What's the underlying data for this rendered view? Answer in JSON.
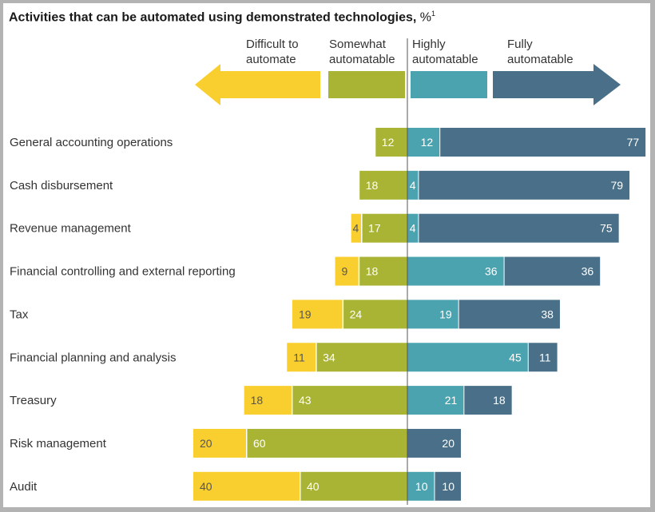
{
  "title": {
    "main": "Activities that can be automated using demonstrated technologies,",
    "unit": "%",
    "footnote_mark": "1"
  },
  "colors": {
    "difficult": "#f9cf2f",
    "somewhat": "#a9b434",
    "highly": "#4ba3b0",
    "fully": "#4a7089",
    "axis": "#555555"
  },
  "chart_data": {
    "type": "bar",
    "layout": "diverging-stacked-horizontal",
    "title": "Activities that can be automated using demonstrated technologies, %",
    "categories": [
      "General accounting operations",
      "Cash disbursement",
      "Revenue management",
      "Financial controlling and external reporting",
      "Tax",
      "Financial planning and analysis",
      "Treasury",
      "Risk management",
      "Audit"
    ],
    "series": [
      {
        "name": "Difficult to automate",
        "key": "difficult",
        "side": "left",
        "values": [
          0,
          0,
          4,
          9,
          19,
          11,
          18,
          20,
          40
        ]
      },
      {
        "name": "Somewhat automatable",
        "key": "somewhat",
        "side": "left",
        "values": [
          12,
          18,
          17,
          18,
          24,
          34,
          43,
          60,
          40
        ]
      },
      {
        "name": "Highly automatable",
        "key": "highly",
        "side": "right",
        "values": [
          12,
          4,
          4,
          36,
          19,
          45,
          21,
          0,
          10
        ]
      },
      {
        "name": "Fully automatable",
        "key": "fully",
        "side": "right",
        "values": [
          77,
          79,
          75,
          36,
          38,
          11,
          18,
          20,
          10
        ]
      }
    ],
    "legend": [
      {
        "line1": "Difficult to",
        "line2": "automate"
      },
      {
        "line1": "Somewhat",
        "line2": "automatable"
      },
      {
        "line1": "Highly",
        "line2": "automatable"
      },
      {
        "line1": "Fully",
        "line2": "automatable"
      }
    ],
    "legend_placement": "top",
    "grid": false
  }
}
